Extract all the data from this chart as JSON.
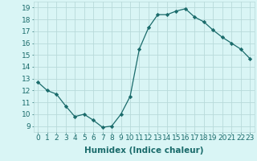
{
  "x": [
    0,
    1,
    2,
    3,
    4,
    5,
    6,
    7,
    8,
    9,
    10,
    11,
    12,
    13,
    14,
    15,
    16,
    17,
    18,
    19,
    20,
    21,
    22,
    23
  ],
  "y": [
    12.7,
    12.0,
    11.7,
    10.7,
    9.8,
    10.0,
    9.5,
    8.9,
    9.0,
    10.0,
    11.5,
    15.5,
    17.3,
    18.4,
    18.4,
    18.7,
    18.9,
    18.2,
    17.8,
    17.1,
    16.5,
    16.0,
    15.5,
    14.7
  ],
  "line_color": "#1a6b6b",
  "marker": "D",
  "marker_size": 2.2,
  "bg_color": "#d9f5f5",
  "grid_color": "#b8dada",
  "xlabel": "Humidex (Indice chaleur)",
  "ylim": [
    8.5,
    19.5
  ],
  "xlim": [
    -0.5,
    23.5
  ],
  "yticks": [
    9,
    10,
    11,
    12,
    13,
    14,
    15,
    16,
    17,
    18,
    19
  ],
  "xticks": [
    0,
    1,
    2,
    3,
    4,
    5,
    6,
    7,
    8,
    9,
    10,
    11,
    12,
    13,
    14,
    15,
    16,
    17,
    18,
    19,
    20,
    21,
    22,
    23
  ],
  "xtick_labels": [
    "0",
    "1",
    "2",
    "3",
    "4",
    "5",
    "6",
    "7",
    "8",
    "9",
    "10",
    "11",
    "12",
    "13",
    "14",
    "15",
    "16",
    "17",
    "18",
    "19",
    "20",
    "21",
    "22",
    "23"
  ],
  "xlabel_fontsize": 7.5,
  "tick_fontsize": 6.5
}
